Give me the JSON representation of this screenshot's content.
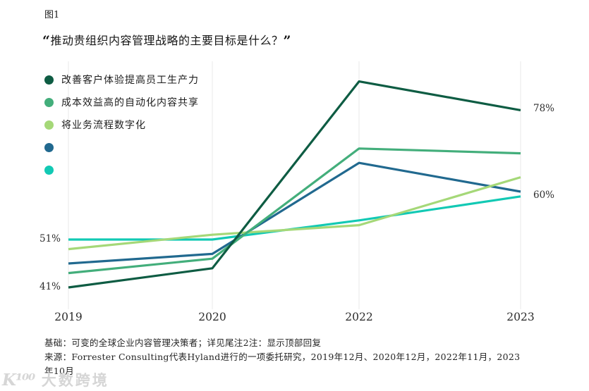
{
  "figure": {
    "label": "图1"
  },
  "title": {
    "open_quote": "“",
    "text": "推动贵组织内容管理战略的主要目标是什么？",
    "close_quote": "”"
  },
  "legend": [
    {
      "label": "改善客户体验提高员工生产力",
      "color": "#0E5C43"
    },
    {
      "label": "成本效益高的自动化内容共享",
      "color": "#43AE7B"
    },
    {
      "label": "将业务流程数字化",
      "color": "#A5D878"
    },
    {
      "label": "",
      "color": "#21698F"
    },
    {
      "label": "",
      "color": "#12C9B4"
    }
  ],
  "chart_data": {
    "type": "line",
    "title": "推动贵组织内容管理战略的主要目标是什么？",
    "x": [
      "2019",
      "2020",
      "2022",
      "2023"
    ],
    "xlabel": "",
    "ylabel": "",
    "ylim": [
      38,
      88
    ],
    "grid": "vertical-only",
    "legend_position": "top-left-overlay",
    "series": [
      {
        "name": "改善客户体验提高员工生产力",
        "color": "#0E5C43",
        "values": [
          41,
          45,
          84,
          78
        ]
      },
      {
        "name": "成本效益高的自动化内容共享",
        "color": "#43AE7B",
        "values": [
          44,
          47,
          70,
          69
        ]
      },
      {
        "name": "将业务流程数字化",
        "color": "#A5D878",
        "values": [
          49,
          52,
          54,
          64
        ]
      },
      {
        "name": "",
        "color": "#21698F",
        "values": [
          46,
          48,
          67,
          61
        ]
      },
      {
        "name": "",
        "color": "#12C9B4",
        "values": [
          51,
          51,
          55,
          60
        ]
      }
    ],
    "annotations": {
      "left": [
        {
          "text": "51%",
          "value": 51
        },
        {
          "text": "41%",
          "value": 41
        }
      ],
      "right": [
        {
          "text": "78%",
          "value": 78
        },
        {
          "text": "60%",
          "value": 60
        }
      ]
    }
  },
  "footnotes": [
    "基础：可变的全球企业内容管理决策者；详见尾注2注：显示顶部回复",
    "来源：Forrester Consulting代表Hyland进行的一项委托研究，2019年12月、2020年12月，2022年11月，2023年10月"
  ],
  "watermark": {
    "logo": "K¹⁰⁰",
    "text": "大数跨境"
  }
}
